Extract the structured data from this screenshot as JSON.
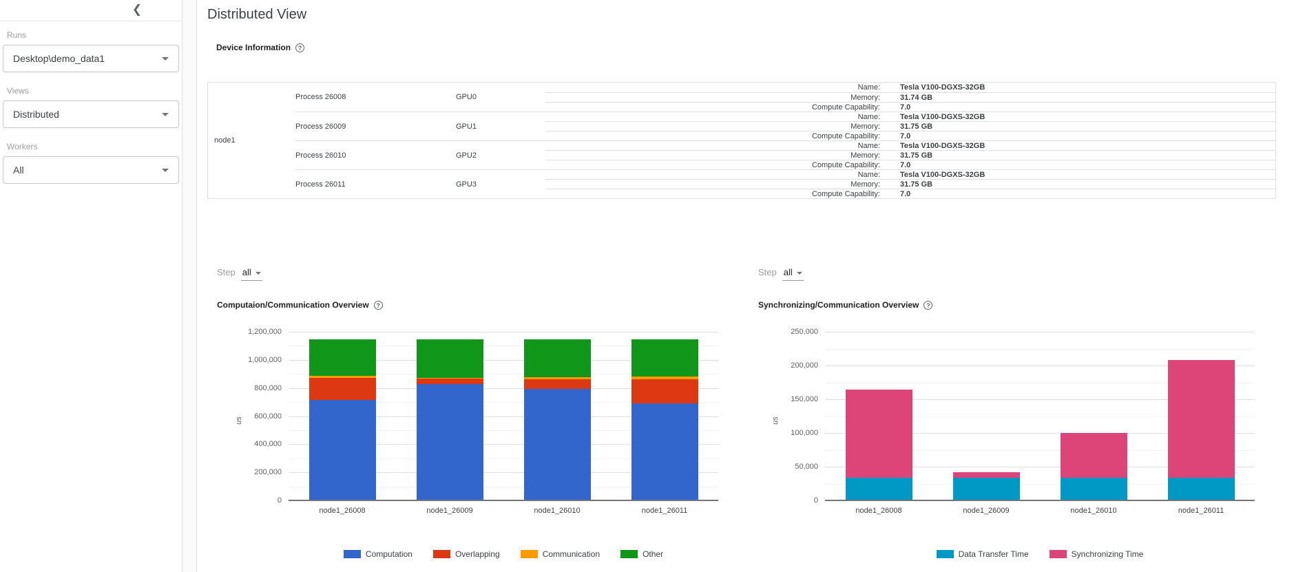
{
  "header": {
    "title": "Distributed View"
  },
  "icons": {
    "collapse": "chevron-left",
    "dropdown": "caret-down",
    "help": "question-mark-circle"
  },
  "sidebar": {
    "sections": [
      {
        "label": "Runs",
        "value": "Desktop\\demo_data1"
      },
      {
        "label": "Views",
        "value": "Distributed"
      },
      {
        "label": "Workers",
        "value": "All"
      }
    ]
  },
  "device_info": {
    "section_title": "Device Information",
    "node_label": "node1",
    "groups": [
      {
        "process": "Process 26008",
        "gpu": "GPU0",
        "details": [
          {
            "label": "Name:",
            "value": "Tesla V100-DGXS-32GB"
          },
          {
            "label": "Memory:",
            "value": "31.74 GB"
          },
          {
            "label": "Compute Capability:",
            "value": "7.0"
          }
        ]
      },
      {
        "process": "Process 26009",
        "gpu": "GPU1",
        "details": [
          {
            "label": "Name:",
            "value": "Tesla V100-DGXS-32GB"
          },
          {
            "label": "Memory:",
            "value": "31.75 GB"
          },
          {
            "label": "Compute Capability:",
            "value": "7.0"
          }
        ]
      },
      {
        "process": "Process 26010",
        "gpu": "GPU2",
        "details": [
          {
            "label": "Name:",
            "value": "Tesla V100-DGXS-32GB"
          },
          {
            "label": "Memory:",
            "value": "31.75 GB"
          },
          {
            "label": "Compute Capability:",
            "value": "7.0"
          }
        ]
      },
      {
        "process": "Process 26011",
        "gpu": "GPU3",
        "details": [
          {
            "label": "Name:",
            "value": "Tesla V100-DGXS-32GB"
          },
          {
            "label": "Memory:",
            "value": "31.75 GB"
          },
          {
            "label": "Compute Capability:",
            "value": "7.0"
          }
        ]
      }
    ]
  },
  "steps": [
    {
      "label": "Step",
      "value": "all"
    },
    {
      "label": "Step",
      "value": "all"
    }
  ],
  "chart_data": [
    {
      "type": "bar",
      "stacked": true,
      "title": "Computaion/Communication Overview",
      "categories": [
        "node1_26008",
        "node1_26009",
        "node1_26010",
        "node1_26011"
      ],
      "series": [
        {
          "name": "Computation",
          "color": "#3366cc",
          "values": [
            715000,
            830000,
            793000,
            690000
          ]
        },
        {
          "name": "Overlapping",
          "color": "#dc3912",
          "values": [
            159000,
            35000,
            67000,
            172000
          ]
        },
        {
          "name": "Communication",
          "color": "#ff9900",
          "values": [
            12000,
            8000,
            15000,
            18000
          ]
        },
        {
          "name": "Other",
          "color": "#109618",
          "values": [
            260000,
            272000,
            270000,
            265000
          ]
        }
      ],
      "xlabel": "",
      "ylabel": "us",
      "ylim": [
        0,
        1200000
      ],
      "ytick_step": 200000,
      "grid": true,
      "legend_position": "bottom"
    },
    {
      "type": "bar",
      "stacked": true,
      "title": "Synchronizing/Communication Overview",
      "categories": [
        "node1_26008",
        "node1_26009",
        "node1_26010",
        "node1_26011"
      ],
      "series": [
        {
          "name": "Data Transfer Time",
          "color": "#0099c6",
          "values": [
            34000,
            34000,
            34000,
            34000
          ]
        },
        {
          "name": "Synchronizing Time",
          "color": "#dd4477",
          "values": [
            130000,
            8000,
            66000,
            174000
          ]
        }
      ],
      "xlabel": "",
      "ylabel": "us",
      "ylim": [
        0,
        250000
      ],
      "ytick_step": 50000,
      "grid": true,
      "legend_position": "bottom"
    }
  ]
}
